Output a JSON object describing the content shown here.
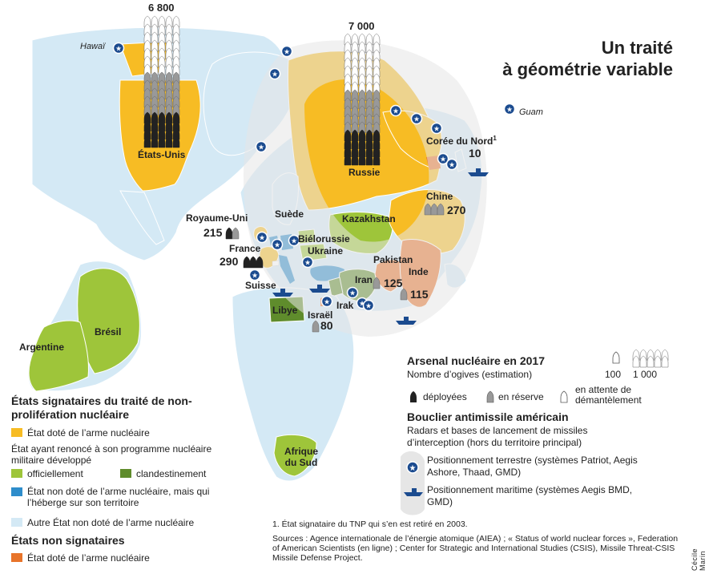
{
  "title": [
    "Un traité",
    "à géométrie variable"
  ],
  "colors": {
    "ocean": "#ffffff",
    "other_state": "#d4e9f5",
    "nuclear_signatory": "#f7bc24",
    "renounced_official": "#9ec53a",
    "renounced_clandestine": "#5f8c2c",
    "hosting": "#2e8dcb",
    "non_signatory": "#e8742a",
    "shield_zone": "#e6e6e6",
    "marker": "#1b4b8f"
  },
  "countries": {
    "usa": "États-Unis",
    "russia": "Russie",
    "north_korea": "Corée du Nord",
    "north_korea_sup": "1",
    "china": "Chine",
    "uk": "Royaume-Uni",
    "france": "France",
    "sweden": "Suède",
    "kazakhstan": "Kazakhstan",
    "belarus": "Biélorussie",
    "ukraine": "Ukraine",
    "switzerland": "Suisse",
    "pakistan": "Pakistan",
    "india": "Inde",
    "iran": "Iran",
    "iraq": "Irak",
    "libya": "Libye",
    "israel": "Israël",
    "brazil": "Brésil",
    "argentina": "Argentine",
    "south_africa": "Afrique du Sud"
  },
  "places": {
    "hawaii": "Hawaï",
    "guam": "Guam"
  },
  "warheads": {
    "usa": "6 800",
    "russia": "7 000",
    "north_korea": "10",
    "china": "270",
    "uk": "215",
    "france": "290",
    "pakistan": "125",
    "india": "115",
    "israel": "80"
  },
  "arsenal_legend": {
    "title": "Arsenal nucléaire en 2017",
    "subtitle": "Nombre d’ogives (estimation)",
    "scale_small": "100",
    "scale_large": "1 000",
    "deployed": "déployées",
    "reserve": "en réserve",
    "dismantle": "en attente de démantèlement"
  },
  "shield_legend": {
    "title": "Bouclier antimissile américain",
    "subtitle": "Radars et bases de lancement de missiles d’interception (hors du territoire principal)",
    "ground": "Positionnement terrestre (systèmes Patriot, Aegis Ashore, Thaad, GMD)",
    "sea": "Positionnement maritime (systèmes Aegis BMD, GMD)"
  },
  "legend": {
    "signatories_title": "États signataires du traité de non-prolifération nucléaire",
    "nuclear_state": "État doté de l’arme nucléaire",
    "renounced": "État ayant renoncé à son programme nucléaire militaire développé",
    "official": "officiellement",
    "clandestine": "clandestinement",
    "hosting": "État non doté de l’arme nucléaire, mais qui l’héberge sur son territoire",
    "other": "Autre État non doté de l’arme nucléaire",
    "non_signatories_title": "États non signataires",
    "non_signatory_nuclear": "État doté de l’arme nucléaire"
  },
  "footnote": "1. État signataire du TNP qui s’en est retiré en 2003.",
  "sources": "Sources : Agence internationale de l’énergie atomique (AIEA) ; « Status of world nuclear forces », Federation of American Scientists (en ligne) ; Center for Strategic and International Studies (CSIS), Missile Threat-CSIS Missile Defense Project.",
  "credit": "Cécile Marin"
}
